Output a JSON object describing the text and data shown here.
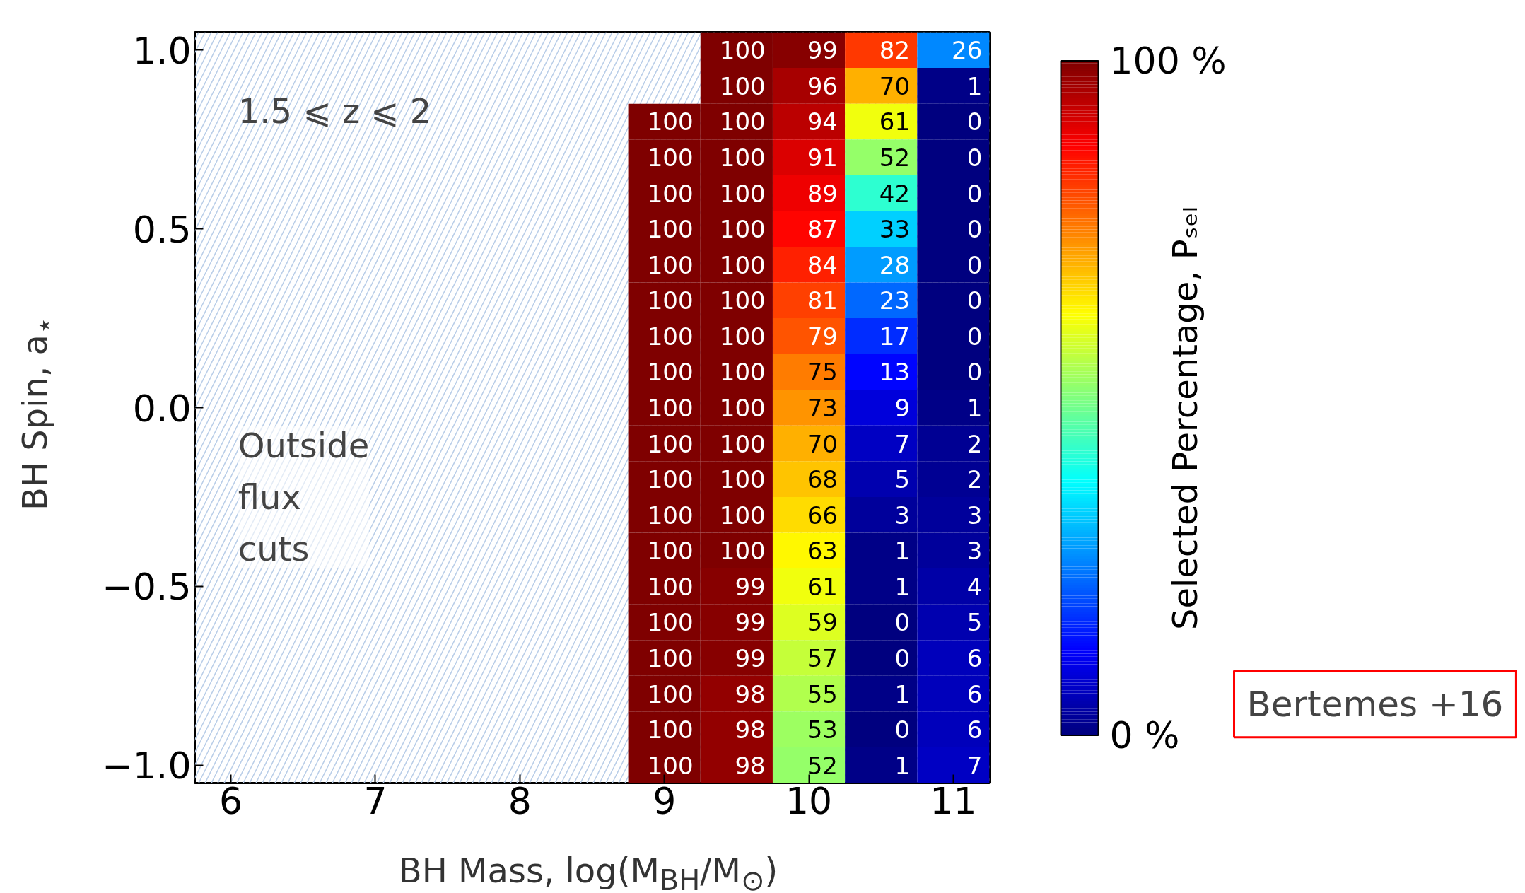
{
  "chart_data": {
    "type": "heatmap",
    "xlabel": "BH Mass, log(M$_{BH}$/M$_{⊙}$)",
    "ylabel": "BH Spin, a$_{⋆}$",
    "clabel": "Selected Percentage, Pₛₑₗ",
    "x": [
      6,
      6.5,
      7,
      7.5,
      8,
      8.5,
      9,
      9.5,
      10,
      10.5,
      11
    ],
    "y": [
      1.0,
      0.9,
      0.8,
      0.7,
      0.6,
      0.5,
      0.4,
      0.3,
      0.2,
      0.1,
      0.0,
      -0.1,
      -0.2,
      -0.3,
      -0.4,
      -0.5,
      -0.6,
      -0.7,
      -0.8,
      -0.9,
      -1.0
    ],
    "cells": [
      [
        null,
        null,
        null,
        null,
        null,
        null,
        null,
        100,
        99,
        82,
        26
      ],
      [
        null,
        null,
        null,
        null,
        null,
        null,
        null,
        100,
        96,
        70,
        1
      ],
      [
        null,
        null,
        null,
        null,
        null,
        null,
        100,
        100,
        94,
        61,
        0
      ],
      [
        null,
        null,
        null,
        null,
        null,
        null,
        100,
        100,
        91,
        52,
        0
      ],
      [
        null,
        null,
        null,
        null,
        null,
        null,
        100,
        100,
        89,
        42,
        0
      ],
      [
        null,
        null,
        null,
        null,
        null,
        null,
        100,
        100,
        87,
        33,
        0
      ],
      [
        null,
        null,
        null,
        null,
        null,
        null,
        100,
        100,
        84,
        28,
        0
      ],
      [
        null,
        null,
        null,
        null,
        null,
        null,
        100,
        100,
        81,
        23,
        0
      ],
      [
        null,
        null,
        null,
        null,
        null,
        null,
        100,
        100,
        79,
        17,
        0
      ],
      [
        null,
        null,
        null,
        null,
        null,
        null,
        100,
        100,
        75,
        13,
        0
      ],
      [
        null,
        null,
        null,
        null,
        null,
        null,
        100,
        100,
        73,
        9,
        1
      ],
      [
        null,
        null,
        null,
        null,
        null,
        null,
        100,
        100,
        70,
        7,
        2
      ],
      [
        null,
        null,
        null,
        null,
        null,
        null,
        100,
        100,
        68,
        5,
        2
      ],
      [
        null,
        null,
        null,
        null,
        null,
        null,
        100,
        100,
        66,
        3,
        3
      ],
      [
        null,
        null,
        null,
        null,
        null,
        null,
        100,
        100,
        63,
        1,
        3
      ],
      [
        null,
        null,
        null,
        null,
        null,
        null,
        100,
        99,
        61,
        1,
        4
      ],
      [
        null,
        null,
        null,
        null,
        null,
        null,
        100,
        99,
        59,
        0,
        5
      ],
      [
        null,
        null,
        null,
        null,
        null,
        null,
        100,
        99,
        57,
        0,
        6
      ],
      [
        null,
        null,
        null,
        null,
        null,
        null,
        100,
        98,
        55,
        1,
        6
      ],
      [
        null,
        null,
        null,
        null,
        null,
        null,
        100,
        98,
        53,
        0,
        6
      ],
      [
        null,
        null,
        null,
        null,
        null,
        null,
        100,
        98,
        52,
        1,
        7
      ]
    ],
    "data_labels": true,
    "xlim": [
      5.75,
      11.25
    ],
    "xticks": [
      6,
      7,
      8,
      9,
      10,
      11
    ],
    "ylim": [
      -1.05,
      1.05
    ],
    "yticks": [
      {
        "value": -1.0,
        "label": "−1.0"
      },
      {
        "value": -0.5,
        "label": "−0.5"
      },
      {
        "value": 0.0,
        "label": "0.0"
      },
      {
        "value": 0.5,
        "label": "0.5"
      },
      {
        "value": 1.0,
        "label": "1.0"
      }
    ],
    "clim": [
      0,
      100
    ],
    "cticks": [
      {
        "value": 0,
        "label": "0 %"
      },
      {
        "value": 100,
        "label": "100 %"
      }
    ],
    "annotations": [
      "1.5 ⩽ z ⩽ 2",
      "Outside\nflux\ncuts",
      "Bertemes +16"
    ]
  }
}
